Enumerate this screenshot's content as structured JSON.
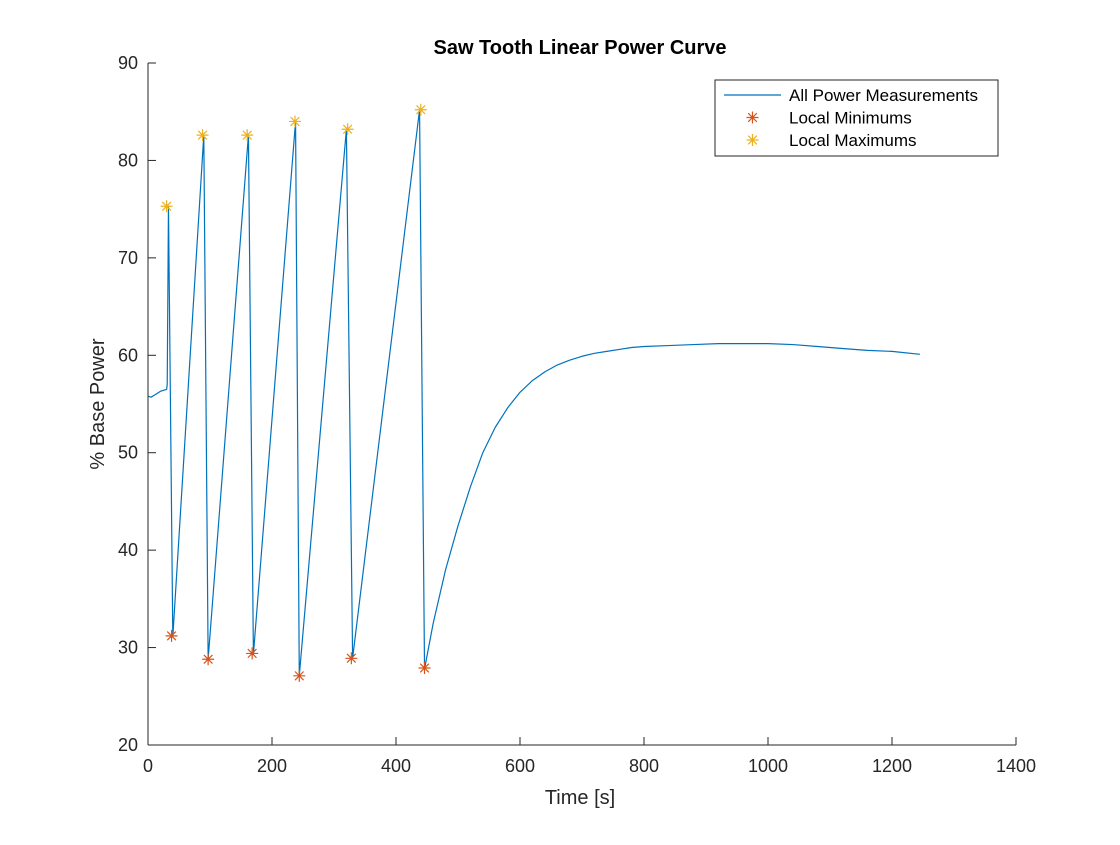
{
  "chart_data": {
    "type": "line",
    "title": "Saw Tooth Linear Power Curve",
    "xlabel": "Time [s]",
    "ylabel": "% Base Power",
    "xlim": [
      0,
      1400
    ],
    "ylim": [
      20,
      90
    ],
    "xticks": [
      0,
      200,
      400,
      600,
      800,
      1000,
      1200,
      1400
    ],
    "yticks": [
      20,
      30,
      40,
      50,
      60,
      70,
      80,
      90
    ],
    "grid": false,
    "legend_placement": "top-right",
    "series": [
      {
        "name": "All Power Measurements",
        "kind": "line",
        "color": "#0072BD",
        "x": [
          0,
          5,
          10,
          20,
          25,
          30,
          31,
          33,
          40,
          90,
          97,
          162,
          170,
          238,
          244,
          320,
          330,
          438,
          446,
          460,
          480,
          500,
          520,
          540,
          560,
          580,
          600,
          620,
          640,
          660,
          680,
          700,
          720,
          740,
          760,
          780,
          800,
          840,
          880,
          920,
          960,
          1000,
          1040,
          1080,
          1120,
          1160,
          1200,
          1245
        ],
        "y": [
          55.8,
          55.7,
          55.9,
          56.3,
          56.4,
          56.5,
          57.0,
          75.3,
          31.1,
          82.6,
          28.8,
          82.6,
          29.3,
          84.0,
          27.1,
          83.2,
          28.9,
          85.2,
          27.8,
          32.5,
          38.0,
          42.5,
          46.5,
          50.0,
          52.6,
          54.6,
          56.2,
          57.4,
          58.3,
          59.0,
          59.5,
          59.9,
          60.2,
          60.4,
          60.6,
          60.8,
          60.9,
          61.0,
          61.1,
          61.2,
          61.2,
          61.2,
          61.1,
          60.9,
          60.7,
          60.5,
          60.4,
          60.1
        ]
      },
      {
        "name": "Local Minimums",
        "kind": "marker",
        "marker": "star",
        "color": "#D95319",
        "x": [
          38,
          97,
          168,
          244,
          328,
          446
        ],
        "y": [
          31.2,
          28.8,
          29.4,
          27.1,
          28.9,
          27.9
        ]
      },
      {
        "name": "Local Maximums",
        "kind": "marker",
        "marker": "star",
        "color": "#EDB120",
        "x": [
          30,
          88,
          160,
          237,
          322,
          440
        ],
        "y": [
          75.3,
          82.6,
          82.6,
          84.0,
          83.2,
          85.2
        ]
      }
    ]
  }
}
